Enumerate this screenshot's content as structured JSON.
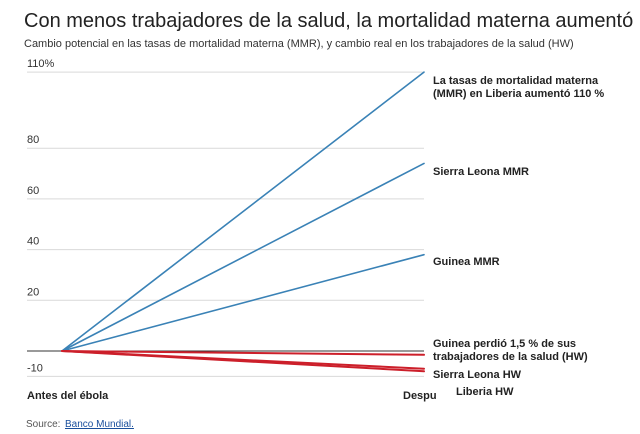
{
  "chart_data": {
    "type": "line",
    "title": "Con menos trabajadores de la salud, la mortalidad materna aumentó",
    "subtitle": "Cambio potencial en las tasas de mortalidad materna (MMR), y cambio real en los trabajadores de la salud (HW)",
    "x": [
      "Antes del ébola",
      "Despu"
    ],
    "y_ticks": [
      "110%",
      "80",
      "60",
      "40",
      "20",
      "-10"
    ],
    "ylim": [
      -10,
      110
    ],
    "grid": true,
    "series": [
      {
        "name": "La tasas de mortalidad materna (MMR) en Liberia aumentó 110 %",
        "values": [
          0,
          110
        ],
        "color": "#3a82b6"
      },
      {
        "name": "Sierra Leona MMR",
        "values": [
          0,
          74
        ],
        "color": "#3a82b6"
      },
      {
        "name": "Guinea MMR",
        "values": [
          0,
          38
        ],
        "color": "#3a82b6"
      },
      {
        "name": "Guinea perdió 1,5 % de sus trabajadores de la salud (HW)",
        "values": [
          0,
          -1.5
        ],
        "color": "#cc1f2a"
      },
      {
        "name": "Sierra Leona HW",
        "values": [
          0,
          -7
        ],
        "color": "#cc1f2a"
      },
      {
        "name": "Liberia HW",
        "values": [
          0,
          -8
        ],
        "color": "#cc1f2a"
      }
    ]
  },
  "annotations": [
    {
      "lines": [
        "La tasas de mortalidad materna",
        "(MMR) en Liberia aumentó 110 %"
      ]
    },
    {
      "lines": [
        "Sierra Leona MMR"
      ]
    },
    {
      "lines": [
        "Guinea MMR"
      ]
    },
    {
      "lines": [
        "Guinea perdió 1,5 % de sus",
        "trabajadores de la salud (HW)"
      ]
    },
    {
      "lines": [
        "Sierra Leona HW"
      ]
    },
    {
      "lines": [
        "Liberia HW"
      ]
    }
  ],
  "source": {
    "label": "Source:",
    "link_text": "Banco Mundial."
  }
}
